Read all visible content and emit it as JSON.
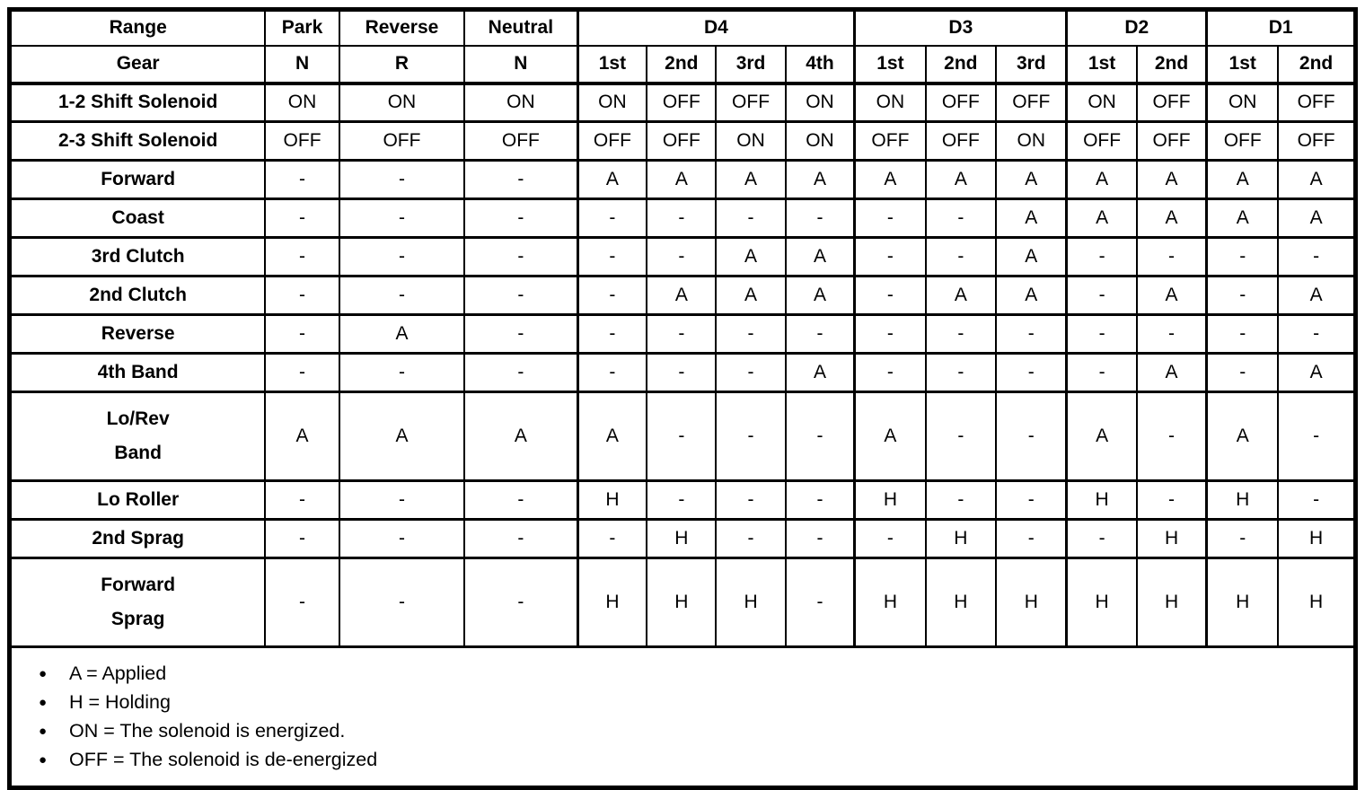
{
  "header": {
    "range_label": "Range",
    "gear_label": "Gear",
    "groups": [
      {
        "label": "Park",
        "gears": [
          "N"
        ]
      },
      {
        "label": "Reverse",
        "gears": [
          "R"
        ]
      },
      {
        "label": "Neutral",
        "gears": [
          "N"
        ]
      },
      {
        "label": "D4",
        "gears": [
          "1st",
          "2nd",
          "3rd",
          "4th"
        ]
      },
      {
        "label": "D3",
        "gears": [
          "1st",
          "2nd",
          "3rd"
        ]
      },
      {
        "label": "D2",
        "gears": [
          "1st",
          "2nd"
        ]
      },
      {
        "label": "D1",
        "gears": [
          "1st",
          "2nd"
        ]
      }
    ]
  },
  "rows": [
    {
      "label": "1-2 Shift Solenoid",
      "values": [
        "ON",
        "ON",
        "ON",
        "ON",
        "OFF",
        "OFF",
        "ON",
        "ON",
        "OFF",
        "OFF",
        "ON",
        "OFF",
        "ON",
        "OFF"
      ]
    },
    {
      "label": "2-3 Shift Solenoid",
      "values": [
        "OFF",
        "OFF",
        "OFF",
        "OFF",
        "OFF",
        "ON",
        "ON",
        "OFF",
        "OFF",
        "ON",
        "OFF",
        "OFF",
        "OFF",
        "OFF"
      ]
    },
    {
      "label": "Forward",
      "values": [
        "-",
        "-",
        "-",
        "A",
        "A",
        "A",
        "A",
        "A",
        "A",
        "A",
        "A",
        "A",
        "A",
        "A"
      ]
    },
    {
      "label": "Coast",
      "values": [
        "-",
        "-",
        "-",
        "-",
        "-",
        "-",
        "-",
        "-",
        "-",
        "A",
        "A",
        "A",
        "A",
        "A"
      ]
    },
    {
      "label": "3rd Clutch",
      "values": [
        "-",
        "-",
        "-",
        "-",
        "-",
        "A",
        "A",
        "-",
        "-",
        "A",
        "-",
        "-",
        "-",
        "-"
      ]
    },
    {
      "label": "2nd Clutch",
      "values": [
        "-",
        "-",
        "-",
        "-",
        "A",
        "A",
        "A",
        "-",
        "A",
        "A",
        "-",
        "A",
        "-",
        "A"
      ]
    },
    {
      "label": "Reverse",
      "values": [
        "-",
        "A",
        "-",
        "-",
        "-",
        "-",
        "-",
        "-",
        "-",
        "-",
        "-",
        "-",
        "-",
        "-"
      ]
    },
    {
      "label": "4th Band",
      "values": [
        "-",
        "-",
        "-",
        "-",
        "-",
        "-",
        "A",
        "-",
        "-",
        "-",
        "-",
        "A",
        "-",
        "A"
      ]
    },
    {
      "label": "Lo/Rev Band",
      "label_lines": [
        "Lo/Rev",
        "Band"
      ],
      "tall": true,
      "values": [
        "A",
        "A",
        "A",
        "A",
        "-",
        "-",
        "-",
        "A",
        "-",
        "-",
        "A",
        "-",
        "A",
        "-"
      ]
    },
    {
      "label": "Lo Roller",
      "values": [
        "-",
        "-",
        "-",
        "H",
        "-",
        "-",
        "-",
        "H",
        "-",
        "-",
        "H",
        "-",
        "H",
        "-"
      ]
    },
    {
      "label": "2nd Sprag",
      "values": [
        "-",
        "-",
        "-",
        "-",
        "H",
        "-",
        "-",
        "-",
        "H",
        "-",
        "-",
        "H",
        "-",
        "H"
      ]
    },
    {
      "label": "Forward Sprag",
      "label_lines": [
        "Forward",
        "Sprag"
      ],
      "tall": true,
      "values": [
        "-",
        "-",
        "-",
        "H",
        "H",
        "H",
        "-",
        "H",
        "H",
        "H",
        "H",
        "H",
        "H",
        "H"
      ]
    }
  ],
  "legend": {
    "bullet_icon": "●",
    "items": [
      "A = Applied",
      "H = Holding",
      "ON = The solenoid is energized.",
      "OFF = The solenoid is de-energized"
    ]
  },
  "colors": {
    "ink": "#000000",
    "paper": "#ffffff"
  }
}
